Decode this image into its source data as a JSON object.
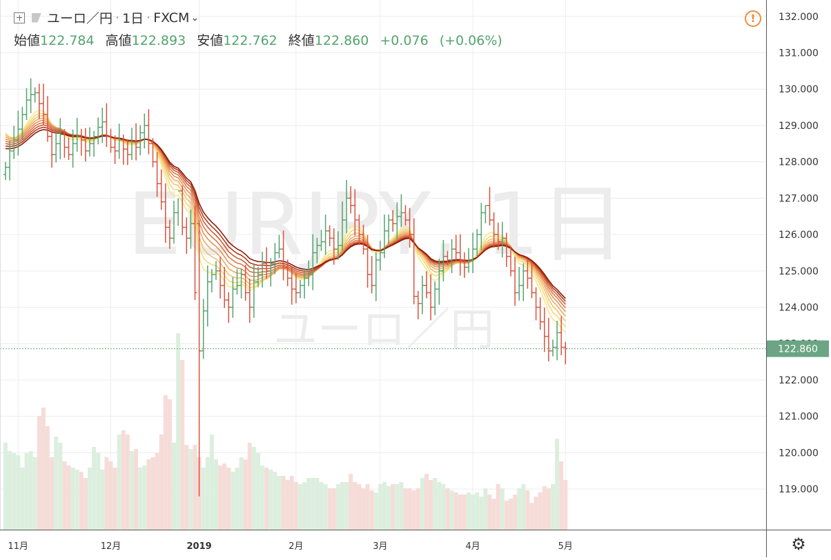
{
  "header": {
    "symbol": "ユーロ／円",
    "interval": "1日",
    "source": "FXCM",
    "ohlc": [
      {
        "label": "始値",
        "value": "122.784"
      },
      {
        "label": "高値",
        "value": "122.893"
      },
      {
        "label": "安値",
        "value": "122.762"
      },
      {
        "label": "終値",
        "value": "122.860"
      }
    ],
    "change": "+0.076",
    "change_pct": "(+0.06%)",
    "alert_icon": "!"
  },
  "watermark": {
    "line1": "EURJPY, 1日",
    "line2": "ユーロ／円"
  },
  "chart_data": {
    "type": "ohlc",
    "symbol": "EURJPY",
    "interval": "1D",
    "ylim": [
      118.3,
      132.3
    ],
    "y_ticks": [
      "119.000",
      "120.000",
      "121.000",
      "122.000",
      "123.000",
      "124.000",
      "125.000",
      "126.000",
      "127.000",
      "128.000",
      "129.000",
      "130.000",
      "131.000",
      "132.000"
    ],
    "x_ticks": [
      {
        "label": "11月",
        "bar": 3
      },
      {
        "label": "12月",
        "bar": 25
      },
      {
        "label": "2019",
        "bar": 46,
        "bold": true
      },
      {
        "label": "2月",
        "bar": 69
      },
      {
        "label": "3月",
        "bar": 89
      },
      {
        "label": "4月",
        "bar": 111
      },
      {
        "label": "5月",
        "bar": 133
      }
    ],
    "last_price": "122.860",
    "last_value": 122.86,
    "colors": {
      "up": "#53a36d",
      "down": "#d9513c",
      "price_label_bg": "#6ba583",
      "grid": "#ececec"
    },
    "ribbon_colors": [
      "#8b1a0a",
      "#b03a1c",
      "#cf5a32",
      "#dd7747",
      "#e69257",
      "#eeaa64",
      "#f2c26c",
      "#f5d875",
      "#f7e887"
    ],
    "close": [
      127.85,
      128.3,
      128.6,
      128.9,
      129.3,
      129.7,
      129.85,
      129.9,
      129.6,
      129.3,
      128.7,
      128.2,
      128.5,
      128.75,
      128.4,
      128.2,
      128.5,
      128.7,
      128.6,
      128.3,
      128.5,
      128.7,
      128.95,
      129.1,
      128.7,
      128.4,
      128.3,
      128.6,
      128.35,
      128.2,
      128.55,
      128.4,
      128.8,
      129.0,
      128.5,
      128.0,
      127.4,
      126.9,
      126.2,
      125.9,
      126.6,
      127.2,
      126.2,
      125.9,
      126.3,
      124.4,
      122.8,
      123.9,
      124.7,
      124.9,
      125.0,
      124.6,
      124.2,
      124.0,
      124.5,
      124.6,
      124.9,
      124.4,
      124.0,
      124.7,
      124.9,
      125.2,
      125.0,
      125.2,
      125.5,
      125.6,
      125.1,
      124.8,
      124.5,
      124.4,
      124.6,
      124.8,
      124.9,
      125.5,
      125.7,
      125.8,
      126.1,
      125.9,
      125.6,
      125.7,
      126.4,
      127.0,
      126.8,
      126.4,
      126.0,
      125.6,
      124.9,
      124.6,
      125.3,
      125.5,
      126.1,
      126.4,
      126.3,
      126.5,
      126.6,
      126.4,
      126.0,
      124.3,
      124.1,
      124.6,
      124.4,
      124.0,
      124.5,
      125.0,
      125.4,
      125.3,
      125.6,
      125.5,
      125.3,
      125.1,
      125.3,
      125.6,
      126.0,
      126.6,
      126.8,
      126.4,
      126.0,
      125.8,
      125.9,
      125.4,
      125.0,
      124.4,
      124.6,
      125.0,
      124.8,
      124.4,
      124.0,
      123.6,
      123.2,
      122.8,
      122.9,
      123.3,
      122.9,
      122.86
    ],
    "volume": [
      0.42,
      0.38,
      0.37,
      0.36,
      0.3,
      0.37,
      0.38,
      0.35,
      0.55,
      0.59,
      0.5,
      0.35,
      0.45,
      0.42,
      0.33,
      0.31,
      0.3,
      0.29,
      0.28,
      0.25,
      0.3,
      0.4,
      0.37,
      0.29,
      0.35,
      0.33,
      0.3,
      0.46,
      0.48,
      0.46,
      0.38,
      0.39,
      0.3,
      0.31,
      0.34,
      0.35,
      0.37,
      0.46,
      0.65,
      0.63,
      0.42,
      0.95,
      0.82,
      0.41,
      0.39,
      0.41,
      0.35,
      0.3,
      0.35,
      0.46,
      0.34,
      0.31,
      0.32,
      0.3,
      0.28,
      0.3,
      0.35,
      0.34,
      0.42,
      0.4,
      0.37,
      0.31,
      0.3,
      0.29,
      0.28,
      0.26,
      0.26,
      0.24,
      0.26,
      0.23,
      0.22,
      0.23,
      0.25,
      0.25,
      0.25,
      0.23,
      0.22,
      0.2,
      0.2,
      0.22,
      0.23,
      0.23,
      0.27,
      0.23,
      0.22,
      0.2,
      0.22,
      0.19,
      0.18,
      0.22,
      0.23,
      0.21,
      0.22,
      0.22,
      0.23,
      0.2,
      0.2,
      0.19,
      0.2,
      0.25,
      0.27,
      0.24,
      0.25,
      0.23,
      0.22,
      0.2,
      0.19,
      0.18,
      0.17,
      0.17,
      0.18,
      0.17,
      0.18,
      0.16,
      0.2,
      0.17,
      0.15,
      0.22,
      0.2,
      0.14,
      0.15,
      0.17,
      0.2,
      0.22,
      0.19,
      0.13,
      0.16,
      0.18,
      0.21,
      0.2,
      0.22,
      0.44,
      0.33,
      0.24
    ]
  }
}
